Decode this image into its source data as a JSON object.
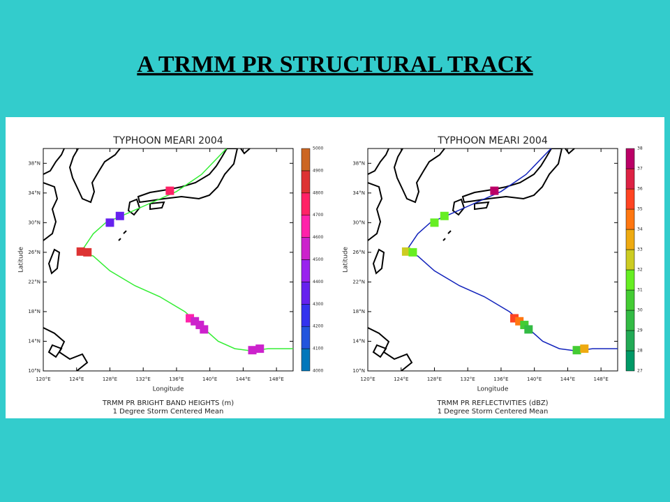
{
  "title": "A TRMM PR STRUCTURAL TRACK",
  "chart_data": [
    {
      "type": "track-map",
      "title": "TYPHOON MEARI 2004",
      "xlabel": "Longitude",
      "ylabel": "Latitude",
      "caption": [
        "TRMM PR BRIGHT BAND HEIGHTS (m)",
        "1 Degree Storm Centered Mean"
      ],
      "xlim": [
        120,
        150
      ],
      "ylim": [
        10,
        40
      ],
      "xticks": [
        {
          "value": 120,
          "label": "120°E"
        },
        {
          "value": 124,
          "label": "124°E"
        },
        {
          "value": 128,
          "label": "128°E"
        },
        {
          "value": 132,
          "label": "132°E"
        },
        {
          "value": 136,
          "label": "136°E"
        },
        {
          "value": 140,
          "label": "140°E"
        },
        {
          "value": 144,
          "label": "144°E"
        },
        {
          "value": 148,
          "label": "148°E"
        }
      ],
      "yticks": [
        {
          "value": 10,
          "label": "10°N"
        },
        {
          "value": 14,
          "label": "14°N"
        },
        {
          "value": 18,
          "label": "18°N"
        },
        {
          "value": 22,
          "label": "22°N"
        },
        {
          "value": 26,
          "label": "26°N"
        },
        {
          "value": 30,
          "label": "30°N"
        },
        {
          "value": 34,
          "label": "34°N"
        },
        {
          "value": 38,
          "label": "38°N"
        }
      ],
      "track": {
        "color": "#33ee33",
        "x": [
          150,
          147,
          145,
          143,
          141,
          139,
          137,
          134,
          131,
          128,
          126,
          124.5,
          126,
          127.5,
          130,
          133,
          136,
          139,
          142
        ],
        "y": [
          13,
          13,
          12.7,
          13,
          14,
          16,
          18,
          20,
          21.5,
          23.5,
          25.5,
          26,
          28.5,
          30,
          31.2,
          32.7,
          34.2,
          36.5,
          40
        ]
      },
      "points": {
        "x": [
          124.5,
          125.3,
          128,
          129.2,
          135.2,
          137.6,
          138.2,
          138.8,
          139.3,
          145.1,
          146
        ],
        "y": [
          26.1,
          26,
          30,
          30.9,
          34.3,
          17.1,
          16.7,
          16.2,
          15.6,
          12.8,
          13
        ],
        "values": [
          4820,
          4810,
          4330,
          4350,
          4750,
          4620,
          4580,
          4560,
          4520,
          4560,
          4560
        ]
      },
      "colorbar": {
        "ticks": [
          4000,
          4100,
          4200,
          4300,
          4400,
          4500,
          4600,
          4700,
          4800,
          4900,
          5000
        ],
        "colors": [
          "#0077bb",
          "#2255dd",
          "#3333ee",
          "#6622ee",
          "#9922ee",
          "#cc22cc",
          "#ff22aa",
          "#ff2266",
          "#dd3333",
          "#cc6622"
        ]
      }
    },
    {
      "type": "track-map",
      "title": "TYPHOON MEARI 2004",
      "xlabel": "Longitude",
      "ylabel": "Latitude",
      "caption": [
        "TRMM PR REFLECTIVITIES (dBZ)",
        "1 Degree Storm Centered Mean"
      ],
      "xlim": [
        120,
        150
      ],
      "ylim": [
        10,
        40
      ],
      "xticks": [
        {
          "value": 120,
          "label": "120°E"
        },
        {
          "value": 124,
          "label": "124°E"
        },
        {
          "value": 128,
          "label": "128°E"
        },
        {
          "value": 132,
          "label": "132°E"
        },
        {
          "value": 136,
          "label": "136°E"
        },
        {
          "value": 140,
          "label": "140°E"
        },
        {
          "value": 144,
          "label": "144°E"
        },
        {
          "value": 148,
          "label": "148°E"
        }
      ],
      "yticks": [
        {
          "value": 10,
          "label": "10°N"
        },
        {
          "value": 14,
          "label": "14°N"
        },
        {
          "value": 18,
          "label": "18°N"
        },
        {
          "value": 22,
          "label": "22°N"
        },
        {
          "value": 26,
          "label": "26°N"
        },
        {
          "value": 30,
          "label": "30°N"
        },
        {
          "value": 34,
          "label": "34°N"
        },
        {
          "value": 38,
          "label": "38°N"
        }
      ],
      "track": {
        "color": "#1122bb",
        "x": [
          150,
          147,
          145,
          143,
          141,
          139,
          137,
          134,
          131,
          128,
          126,
          124.5,
          126,
          127.5,
          130,
          133,
          136,
          139,
          142
        ],
        "y": [
          13,
          13,
          12.7,
          13,
          14,
          16,
          18,
          20,
          21.5,
          23.5,
          25.5,
          26,
          28.5,
          30,
          31.2,
          32.7,
          34.2,
          36.5,
          40
        ]
      },
      "points": {
        "x": [
          124.6,
          125.4,
          128,
          129.2,
          135.2,
          137.6,
          138.2,
          138.8,
          139.3,
          145.1,
          146
        ],
        "y": [
          26.1,
          26,
          30,
          30.9,
          34.3,
          17.1,
          16.7,
          16.2,
          15.6,
          12.8,
          13
        ],
        "values": [
          32.5,
          31.5,
          31,
          31,
          37.5,
          35,
          34.5,
          30,
          29.5,
          30,
          33
        ]
      },
      "colorbar": {
        "ticks": [
          27,
          28,
          29,
          30,
          31,
          32,
          33,
          34,
          35,
          36,
          37,
          38
        ],
        "colors": [
          "#009966",
          "#22aa55",
          "#33bb44",
          "#44cc33",
          "#66ee22",
          "#cccc22",
          "#eeaa11",
          "#ff7711",
          "#ff4422",
          "#dd2244",
          "#bb0066"
        ]
      }
    }
  ]
}
